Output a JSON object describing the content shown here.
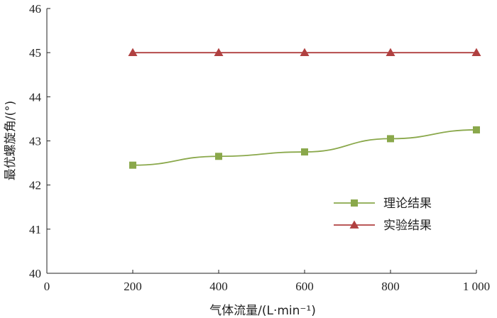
{
  "chart_data": {
    "type": "line",
    "xlabel": "气体流量/(L·min⁻¹)",
    "ylabel": "最优螺旋角/(°)",
    "xlim": [
      0,
      1000
    ],
    "ylim": [
      40,
      46
    ],
    "x_ticks": [
      0,
      200,
      400,
      600,
      800,
      1000
    ],
    "x_tick_labels": [
      "0",
      "200",
      "400",
      "600",
      "800",
      "1 000"
    ],
    "y_ticks": [
      40,
      41,
      42,
      43,
      44,
      45,
      46
    ],
    "y_tick_labels": [
      "40",
      "41",
      "42",
      "43",
      "44",
      "45",
      "46"
    ],
    "grid": false,
    "legend_position": "lower-right",
    "series": [
      {
        "name": "理论结果",
        "marker": "square",
        "color": "#8aa84b",
        "x": [
          200,
          400,
          600,
          800,
          1000
        ],
        "y": [
          42.45,
          42.65,
          42.75,
          43.05,
          43.25
        ]
      },
      {
        "name": "实验结果",
        "marker": "triangle",
        "color": "#b04040",
        "x": [
          200,
          400,
          600,
          800,
          1000
        ],
        "y": [
          45,
          45,
          45,
          45,
          45
        ]
      }
    ]
  }
}
